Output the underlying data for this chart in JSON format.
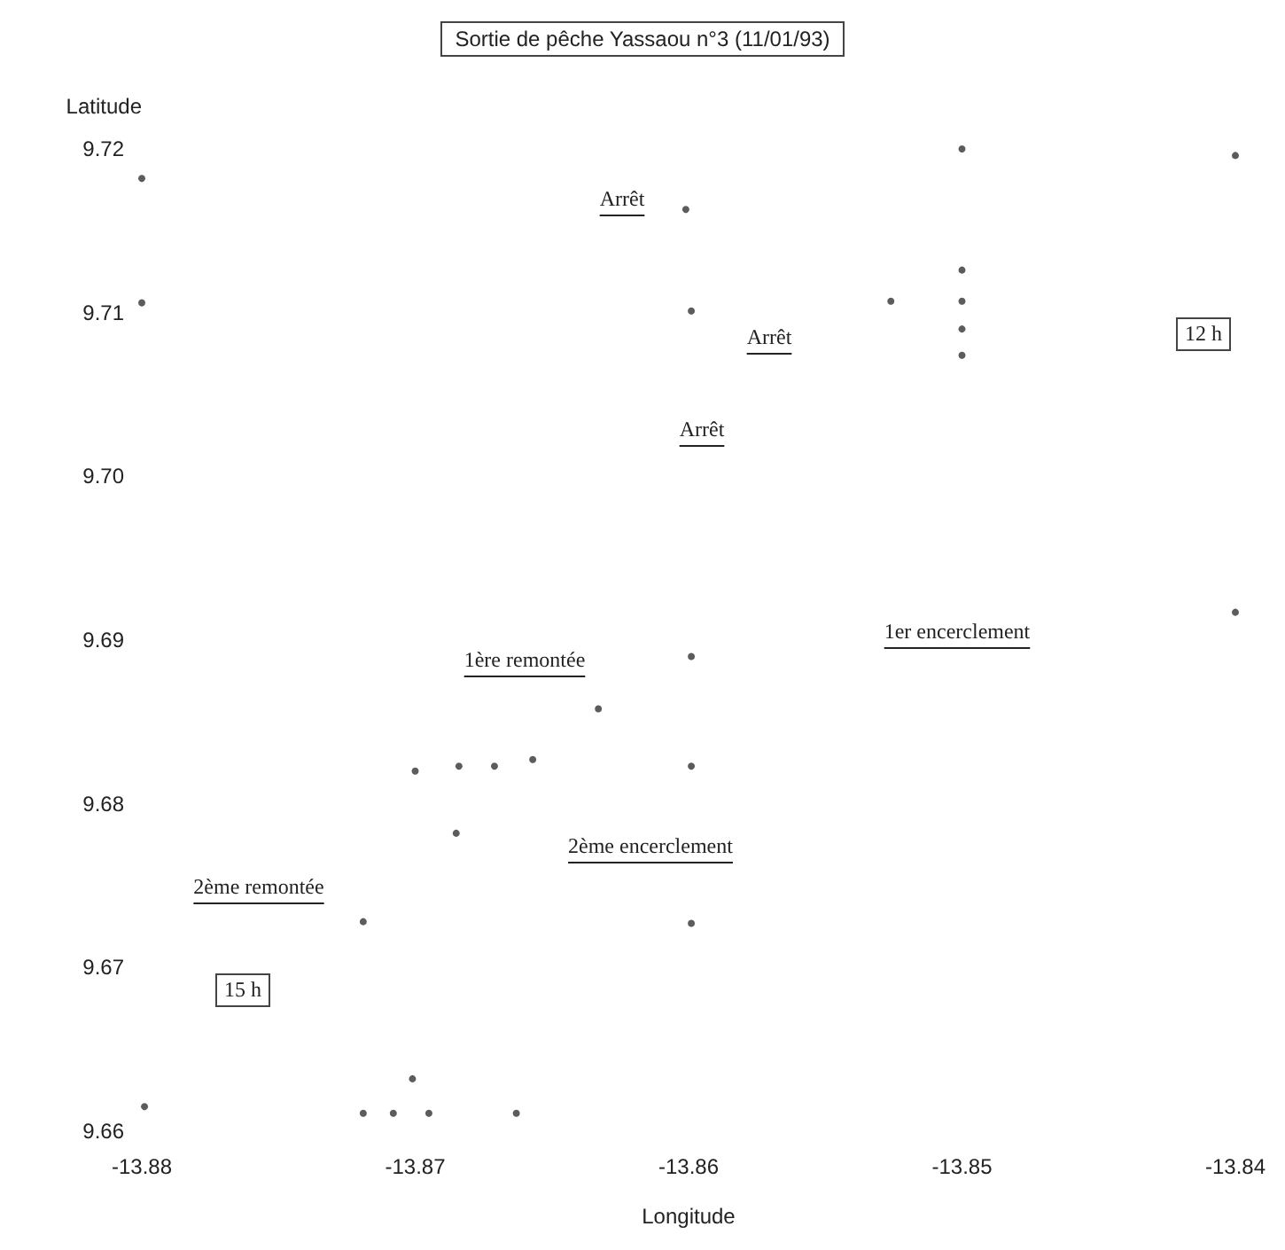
{
  "chart_data": {
    "type": "scatter",
    "title": "Sortie de pêche Yassaou n°3 (11/01/93)",
    "xlabel": "Longitude",
    "ylabel": "Latitude",
    "x": [
      -13.88,
      -13.88,
      -13.8601,
      -13.8599,
      -13.85,
      -13.85,
      -13.85,
      -13.85,
      -13.85,
      -13.8526,
      -13.84,
      -13.84,
      -13.8599,
      -13.8599,
      -13.8599,
      -13.8633,
      -13.8684,
      -13.8671,
      -13.8657,
      -13.8685,
      -13.87,
      -13.8701,
      -13.8719,
      -13.8708,
      -13.8695,
      -13.8663,
      -13.8799,
      -13.8719
    ],
    "values": [
      9.7182,
      9.7106,
      9.7163,
      9.7101,
      9.72,
      9.7126,
      9.7107,
      9.709,
      9.7074,
      9.7107,
      9.7196,
      9.6917,
      9.689,
      9.6823,
      9.6727,
      9.6858,
      9.6823,
      9.6823,
      9.6827,
      9.6782,
      9.682,
      9.6632,
      9.6611,
      9.6611,
      9.6611,
      9.6611,
      9.6615,
      9.6728
    ],
    "color": "#333333",
    "marker": "circle",
    "grid": false,
    "xlim": [
      -13.88,
      -13.84
    ],
    "ylim": [
      9.66,
      9.72
    ],
    "xticks": [
      -13.88,
      -13.87,
      -13.86,
      -13.85,
      -13.84
    ],
    "yticks": [
      {
        "value": 9.66,
        "label": "9.66"
      },
      {
        "value": 9.67,
        "label": "9.67"
      },
      {
        "value": 9.68,
        "label": "9.68"
      },
      {
        "value": 9.69,
        "label": "9.69"
      },
      {
        "value": 9.7,
        "label": "9.70"
      },
      {
        "value": 9.71,
        "label": "9.71"
      },
      {
        "value": 9.72,
        "label": "9.72"
      }
    ],
    "annotations": [
      "Arrêt",
      "Arrêt",
      "Arrêt",
      "12 h",
      "1ère remontée",
      "1er encerclement",
      "2ème encerclement",
      "2ème remontée",
      "15 h"
    ]
  }
}
